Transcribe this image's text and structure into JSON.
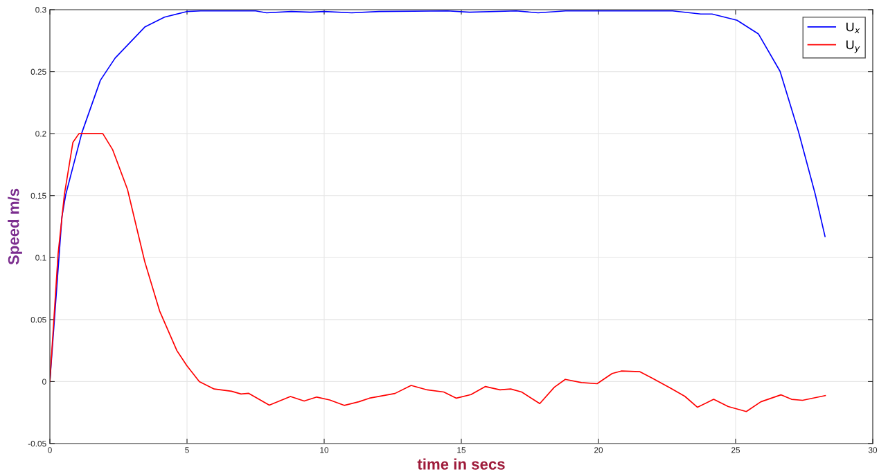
{
  "chart_data": {
    "type": "line",
    "xlabel": "time in secs",
    "ylabel": "Speed m/s",
    "xlim": [
      0,
      30
    ],
    "ylim": [
      -0.05,
      0.3
    ],
    "xticks": [
      0,
      5,
      10,
      15,
      20,
      25,
      30
    ],
    "yticks": [
      {
        "value": -0.05,
        "label": "-0.05"
      },
      0,
      0.05,
      0.1,
      0.15,
      0.2,
      0.25,
      0.3
    ],
    "grid": true,
    "legend": "top right",
    "marker": "none",
    "line_style": "solid",
    "series": [
      {
        "name": "U$_{x}$",
        "color": "#0000ff",
        "x": [
          0,
          0.44,
          0.58,
          1.17,
          1.84,
          2.38,
          3.46,
          4.18,
          4.99,
          5.5,
          7.5,
          7.9,
          8.8,
          9.5,
          10,
          11,
          12,
          14.5,
          15.3,
          17,
          17.8,
          18.8,
          20,
          22.7,
          23.73,
          24.14,
          25.05,
          25.83,
          26.62,
          27.29,
          27.9,
          28.26
        ],
        "values": [
          0,
          0.133,
          0.151,
          0.201,
          0.243,
          0.261,
          0.286,
          0.294,
          0.2985,
          0.299,
          0.299,
          0.2975,
          0.2985,
          0.298,
          0.2985,
          0.2975,
          0.2985,
          0.299,
          0.298,
          0.299,
          0.2975,
          0.299,
          0.299,
          0.299,
          0.2965,
          0.2965,
          0.2915,
          0.2805,
          0.2503,
          0.2018,
          0.1514,
          0.117
        ]
      },
      {
        "name": "U$_{y}$",
        "color": "#ff0000",
        "x": [
          0,
          0.3,
          0.53,
          0.84,
          1.06,
          1.93,
          2.29,
          2.83,
          3.46,
          4.0,
          4.63,
          4.99,
          5.45,
          5.99,
          6.62,
          6.97,
          7.25,
          8.0,
          8.77,
          9.27,
          9.73,
          10.2,
          10.73,
          11.26,
          11.65,
          12.58,
          13.17,
          13.76,
          14.36,
          14.82,
          15.35,
          15.88,
          16.41,
          16.8,
          17.2,
          17.86,
          18.39,
          18.79,
          19.38,
          19.95,
          20.5,
          20.83,
          21.5,
          21.96,
          22.62,
          23.15,
          23.61,
          24.2,
          24.73,
          25.39,
          25.92,
          26.65,
          27.04,
          27.44,
          28.27
        ],
        "values": [
          0,
          0.103,
          0.151,
          0.193,
          0.2,
          0.2,
          0.187,
          0.155,
          0.0967,
          0.057,
          0.025,
          0.0129,
          0,
          -0.006,
          -0.0078,
          -0.01,
          -0.0095,
          -0.019,
          -0.012,
          -0.0157,
          -0.0125,
          -0.0148,
          -0.0192,
          -0.0163,
          -0.0134,
          -0.0096,
          -0.0031,
          -0.0067,
          -0.0084,
          -0.0134,
          -0.0105,
          -0.004,
          -0.0067,
          -0.006,
          -0.0084,
          -0.0178,
          -0.0046,
          0.0018,
          -0.0008,
          -0.0017,
          0.0065,
          0.0085,
          0.008,
          0.0027,
          -0.0052,
          -0.0119,
          -0.0207,
          -0.0143,
          -0.0201,
          -0.0242,
          -0.0163,
          -0.0107,
          -0.0143,
          -0.0151,
          -0.0113
        ]
      }
    ]
  }
}
